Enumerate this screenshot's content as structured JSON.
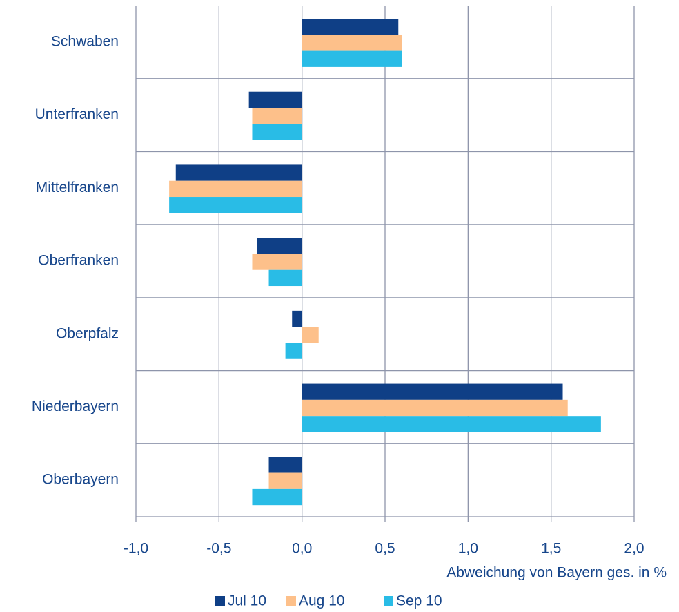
{
  "chart_data": {
    "type": "hbar",
    "x_label": "Abweichung von Bayern ges. in %",
    "categories": [
      "Schwaben",
      "Unterfranken",
      "Mittelfranken",
      "Oberfranken",
      "Oberpfalz",
      "Niederbayern",
      "Oberbayern"
    ],
    "series": [
      {
        "name": "Jul 10",
        "color": "#0f3f86",
        "values": [
          0.58,
          -0.32,
          -0.76,
          -0.27,
          -0.06,
          1.57,
          -0.2
        ]
      },
      {
        "name": "Aug 10",
        "color": "#fdc08a",
        "values": [
          0.6,
          -0.3,
          -0.8,
          -0.3,
          0.1,
          1.6,
          -0.2
        ]
      },
      {
        "name": "Sep 10",
        "color": "#29bce6",
        "values": [
          0.6,
          -0.3,
          -0.8,
          -0.2,
          -0.1,
          1.8,
          -0.3
        ]
      }
    ],
    "xlim": [
      -1.0,
      2.0
    ],
    "xticks": [
      {
        "value": -1.0,
        "label": "-1,0"
      },
      {
        "value": -0.5,
        "label": "-0,5"
      },
      {
        "value": 0,
        "label": "0,0"
      },
      {
        "value": 0.5,
        "label": "0,5"
      },
      {
        "value": 1.0,
        "label": "1,0"
      },
      {
        "value": 1.5,
        "label": "1,5"
      },
      {
        "value": 2.0,
        "label": "2,0"
      }
    ],
    "grid": true,
    "legend": "bottom"
  }
}
